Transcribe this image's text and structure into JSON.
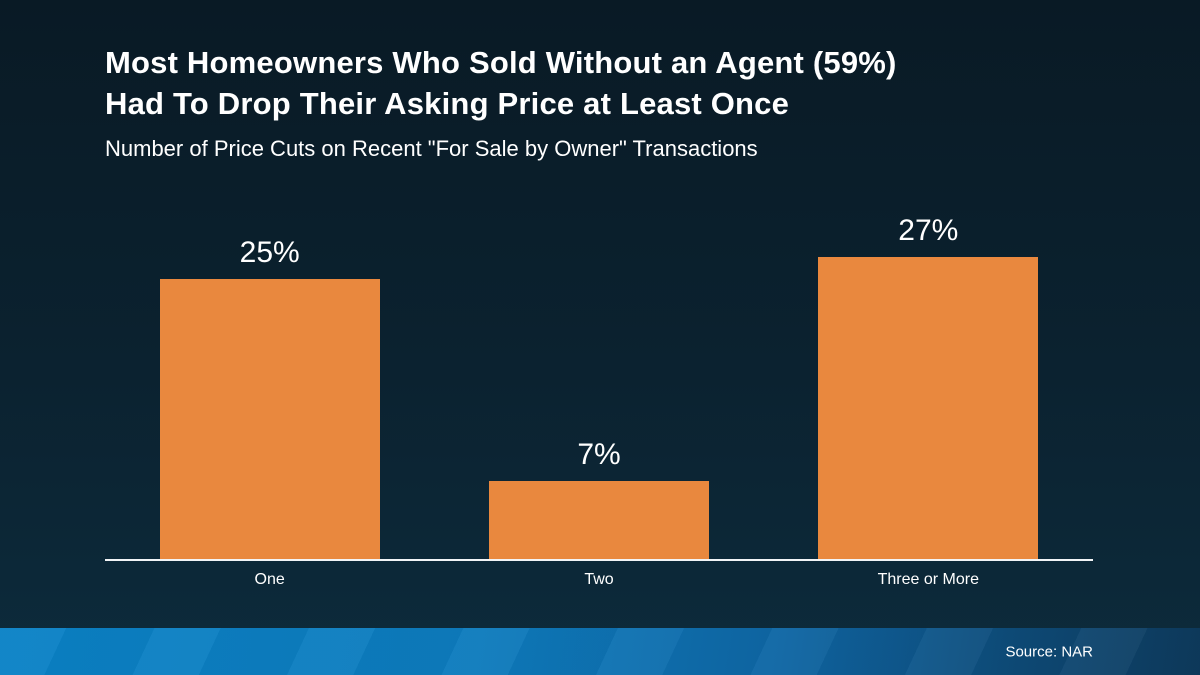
{
  "page": {
    "background_top": "#091a25",
    "background_bottom": "#0d2b3c"
  },
  "header": {
    "title_line1": "Most Homeowners Who Sold Without an Agent (59%)",
    "title_line2": "Had To Drop Their Asking Price at Least Once",
    "subtitle": "Number of Price Cuts on Recent \"For Sale by Owner\" Transactions"
  },
  "chart_data": {
    "type": "bar",
    "title": "Most Homeowners Who Sold Without an Agent (59%) Had To Drop Their Asking Price at Least Once",
    "subtitle": "Number of Price Cuts on Recent \"For Sale by Owner\" Transactions",
    "categories": [
      "One",
      "Two",
      "Three or More"
    ],
    "values": [
      25,
      7,
      27
    ],
    "value_labels": [
      "25%",
      "7%",
      "27%"
    ],
    "xlabel": "",
    "ylabel": "",
    "ylim": [
      0,
      30
    ],
    "grid": false,
    "legend": false,
    "bar_color": "#E9883E",
    "axis_line_color": "#F2F4F6",
    "text_color": "#FFFFFF"
  },
  "footer": {
    "source_label": "Source: NAR",
    "gradient_left": "#0A82C6",
    "gradient_right": "#0D3A5C"
  }
}
